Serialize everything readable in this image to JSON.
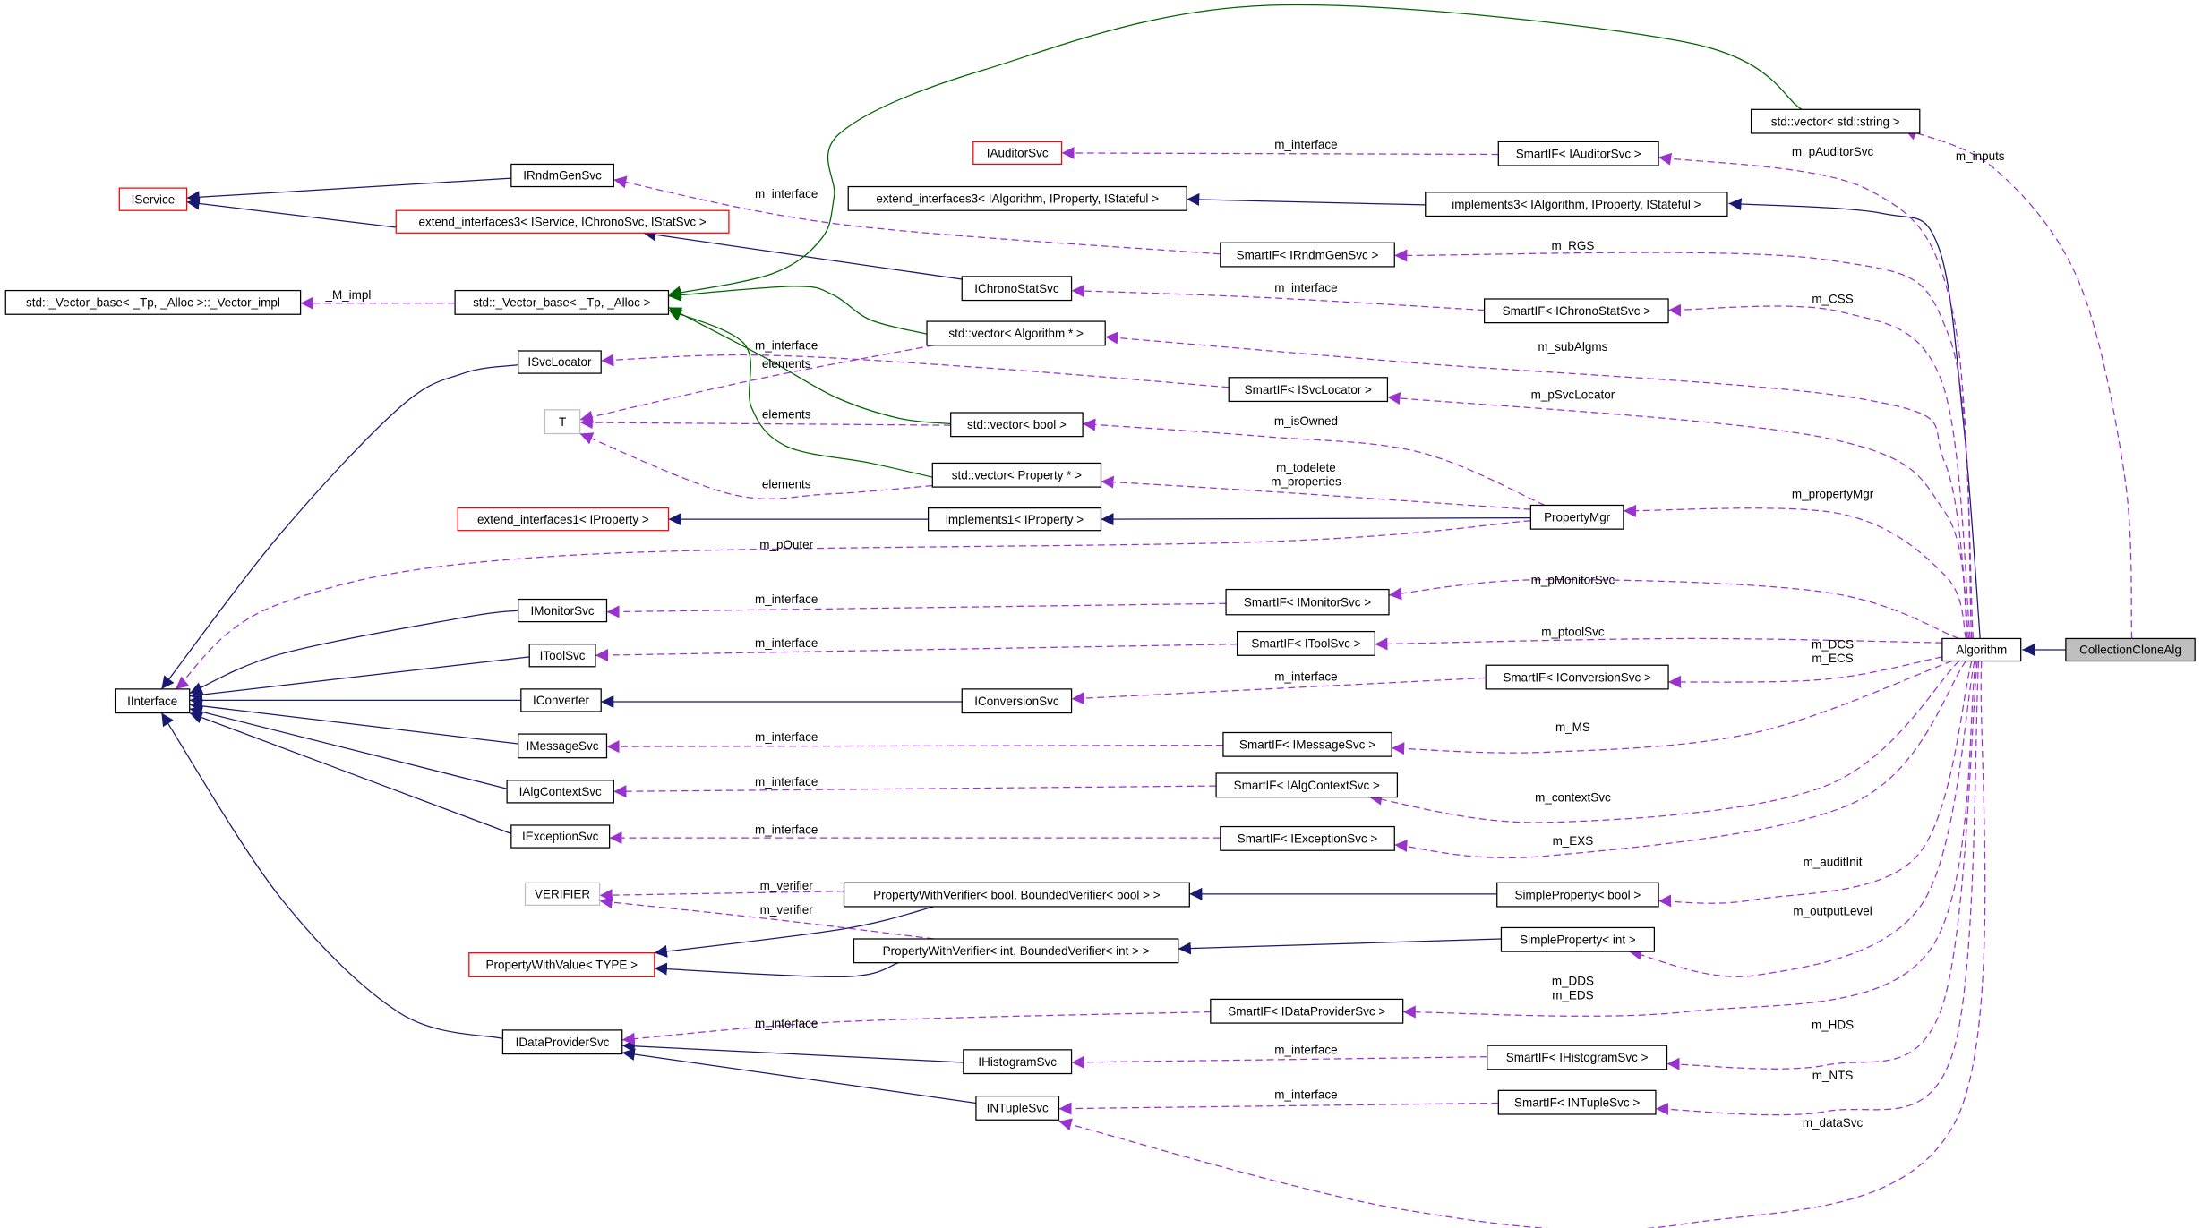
{
  "colors": {
    "inheritance": "#191970",
    "usage": "#9a32cd",
    "template": "#006400",
    "undocumented_border": "#ff0000",
    "external_border": "#bfbfbf",
    "highlight_fill": "#bfbfbf"
  },
  "nodes": [
    {
      "label": "CollectionCloneAlg",
      "style": "highlight"
    },
    {
      "label": "Algorithm",
      "style": "normal"
    },
    {
      "label": "std::vector< std::string >",
      "style": "normal"
    },
    {
      "label": "IAuditorSvc",
      "style": "red"
    },
    {
      "label": "SmartIF< IAuditorSvc >",
      "style": "normal"
    },
    {
      "label": "extend_interfaces3< IAlgorithm, IProperty, IStateful >",
      "style": "normal"
    },
    {
      "label": "implements3< IAlgorithm, IProperty, IStateful >",
      "style": "normal"
    },
    {
      "label": "IRndmGenSvc",
      "style": "normal"
    },
    {
      "label": "IService",
      "style": "red"
    },
    {
      "label": "extend_interfaces3< IService, IChronoSvc, IStatSvc >",
      "style": "red"
    },
    {
      "label": "SmartIF< IRndmGenSvc >",
      "style": "normal"
    },
    {
      "label": "IChronoStatSvc",
      "style": "normal"
    },
    {
      "label": "SmartIF< IChronoStatSvc >",
      "style": "normal"
    },
    {
      "label": "std::_Vector_base< _Tp, _Alloc >::_Vector_impl",
      "style": "normal"
    },
    {
      "label": "std::_Vector_base< _Tp, _Alloc >",
      "style": "normal"
    },
    {
      "label": "std::vector< Algorithm * >",
      "style": "normal"
    },
    {
      "label": "ISvcLocator",
      "style": "normal"
    },
    {
      "label": "SmartIF< ISvcLocator >",
      "style": "normal"
    },
    {
      "label": "T",
      "style": "gray"
    },
    {
      "label": "std::vector< bool >",
      "style": "normal"
    },
    {
      "label": "std::vector< Property * >",
      "style": "normal"
    },
    {
      "label": "extend_interfaces1< IProperty >",
      "style": "red"
    },
    {
      "label": "implements1< IProperty >",
      "style": "normal"
    },
    {
      "label": "PropertyMgr",
      "style": "normal"
    },
    {
      "label": "IMonitorSvc",
      "style": "normal"
    },
    {
      "label": "SmartIF< IMonitorSvc >",
      "style": "normal"
    },
    {
      "label": "IToolSvc",
      "style": "normal"
    },
    {
      "label": "SmartIF< IToolSvc >",
      "style": "normal"
    },
    {
      "label": "IInterface",
      "style": "normal"
    },
    {
      "label": "IConverter",
      "style": "normal"
    },
    {
      "label": "IConversionSvc",
      "style": "normal"
    },
    {
      "label": "SmartIF< IConversionSvc >",
      "style": "normal"
    },
    {
      "label": "IMessageSvc",
      "style": "normal"
    },
    {
      "label": "SmartIF< IMessageSvc >",
      "style": "normal"
    },
    {
      "label": "IAlgContextSvc",
      "style": "normal"
    },
    {
      "label": "SmartIF< IAlgContextSvc >",
      "style": "normal"
    },
    {
      "label": "IExceptionSvc",
      "style": "normal"
    },
    {
      "label": "SmartIF< IExceptionSvc >",
      "style": "normal"
    },
    {
      "label": "VERIFIER",
      "style": "gray"
    },
    {
      "label": "PropertyWithVerifier< bool, BoundedVerifier< bool > >",
      "style": "normal"
    },
    {
      "label": "SimpleProperty< bool >",
      "style": "normal"
    },
    {
      "label": "PropertyWithValue< TYPE >",
      "style": "red"
    },
    {
      "label": "PropertyWithVerifier< int, BoundedVerifier< int > >",
      "style": "normal"
    },
    {
      "label": "SimpleProperty< int >",
      "style": "normal"
    },
    {
      "label": "SmartIF< IDataProviderSvc >",
      "style": "normal"
    },
    {
      "label": "IDataProviderSvc",
      "style": "normal"
    },
    {
      "label": "IHistogramSvc",
      "style": "normal"
    },
    {
      "label": "SmartIF< IHistogramSvc >",
      "style": "normal"
    },
    {
      "label": "INTupleSvc",
      "style": "normal"
    },
    {
      "label": "SmartIF< INTupleSvc >",
      "style": "normal"
    }
  ],
  "edges": [
    {
      "from": 0,
      "to": 1,
      "type": "inheritance",
      "label": []
    },
    {
      "from": 1,
      "to": 6,
      "type": "inheritance",
      "label": []
    },
    {
      "from": 6,
      "to": 5,
      "type": "inheritance",
      "label": []
    },
    {
      "from": 23,
      "to": 22,
      "type": "inheritance",
      "label": []
    },
    {
      "from": 22,
      "to": 21,
      "type": "inheritance",
      "label": []
    },
    {
      "from": 7,
      "to": 8,
      "type": "inheritance",
      "label": []
    },
    {
      "from": 9,
      "to": 8,
      "type": "inheritance",
      "label": []
    },
    {
      "from": 11,
      "to": 9,
      "type": "inheritance",
      "label": []
    },
    {
      "from": 16,
      "to": 28,
      "type": "inheritance",
      "label": []
    },
    {
      "from": 24,
      "to": 28,
      "type": "inheritance",
      "label": []
    },
    {
      "from": 26,
      "to": 28,
      "type": "inheritance",
      "label": []
    },
    {
      "from": 29,
      "to": 28,
      "type": "inheritance",
      "label": []
    },
    {
      "from": 30,
      "to": 29,
      "type": "inheritance",
      "label": []
    },
    {
      "from": 32,
      "to": 28,
      "type": "inheritance",
      "label": []
    },
    {
      "from": 34,
      "to": 28,
      "type": "inheritance",
      "label": []
    },
    {
      "from": 36,
      "to": 28,
      "type": "inheritance",
      "label": []
    },
    {
      "from": 45,
      "to": 28,
      "type": "inheritance",
      "label": []
    },
    {
      "from": 46,
      "to": 45,
      "type": "inheritance",
      "label": []
    },
    {
      "from": 48,
      "to": 45,
      "type": "inheritance",
      "label": []
    },
    {
      "from": 40,
      "to": 39,
      "type": "inheritance",
      "label": []
    },
    {
      "from": 43,
      "to": 42,
      "type": "inheritance",
      "label": []
    },
    {
      "from": 39,
      "to": 41,
      "type": "inheritance",
      "label": []
    },
    {
      "from": 42,
      "to": 41,
      "type": "inheritance",
      "label": []
    },
    {
      "from": 2,
      "to": 14,
      "type": "template",
      "label": []
    },
    {
      "from": 15,
      "to": 14,
      "type": "template",
      "label": []
    },
    {
      "from": 19,
      "to": 14,
      "type": "template",
      "label": []
    },
    {
      "from": 20,
      "to": 14,
      "type": "template",
      "label": []
    },
    {
      "from": 14,
      "to": 13,
      "type": "usage",
      "label": [
        "_M_impl"
      ]
    },
    {
      "from": 15,
      "to": 18,
      "type": "usage",
      "label": [
        "elements"
      ]
    },
    {
      "from": 19,
      "to": 18,
      "type": "usage",
      "label": [
        "elements"
      ]
    },
    {
      "from": 20,
      "to": 18,
      "type": "usage",
      "label": [
        "elements"
      ]
    },
    {
      "from": 4,
      "to": 3,
      "type": "usage",
      "label": [
        "m_interface"
      ]
    },
    {
      "from": 10,
      "to": 7,
      "type": "usage",
      "label": [
        "m_interface"
      ]
    },
    {
      "from": 12,
      "to": 11,
      "type": "usage",
      "label": [
        "m_interface"
      ]
    },
    {
      "from": 17,
      "to": 16,
      "type": "usage",
      "label": [
        "m_interface"
      ]
    },
    {
      "from": 23,
      "to": 19,
      "type": "usage",
      "label": [
        "m_isOwned"
      ]
    },
    {
      "from": 23,
      "to": 20,
      "type": "usage",
      "label": [
        "m_todelete",
        "m_properties"
      ]
    },
    {
      "from": 23,
      "to": 28,
      "type": "usage",
      "label": [
        "m_pOuter"
      ]
    },
    {
      "from": 25,
      "to": 24,
      "type": "usage",
      "label": [
        "m_interface"
      ]
    },
    {
      "from": 27,
      "to": 26,
      "type": "usage",
      "label": [
        "m_interface"
      ]
    },
    {
      "from": 31,
      "to": 30,
      "type": "usage",
      "label": [
        "m_interface"
      ]
    },
    {
      "from": 33,
      "to": 32,
      "type": "usage",
      "label": [
        "m_interface"
      ]
    },
    {
      "from": 35,
      "to": 34,
      "type": "usage",
      "label": [
        "m_interface"
      ]
    },
    {
      "from": 37,
      "to": 36,
      "type": "usage",
      "label": [
        "m_interface"
      ]
    },
    {
      "from": 39,
      "to": 38,
      "type": "usage",
      "label": [
        "m_verifier"
      ]
    },
    {
      "from": 42,
      "to": 38,
      "type": "usage",
      "label": [
        "m_verifier"
      ]
    },
    {
      "from": 44,
      "to": 45,
      "type": "usage",
      "label": [
        "m_interface"
      ]
    },
    {
      "from": 47,
      "to": 46,
      "type": "usage",
      "label": [
        "m_interface"
      ]
    },
    {
      "from": 49,
      "to": 48,
      "type": "usage",
      "label": [
        "m_interface"
      ]
    },
    {
      "from": 0,
      "to": 2,
      "type": "usage",
      "label": [
        "m_inputs"
      ]
    },
    {
      "from": 1,
      "to": 4,
      "type": "usage",
      "label": [
        "m_pAuditorSvc"
      ]
    },
    {
      "from": 1,
      "to": 10,
      "type": "usage",
      "label": [
        "m_RGS"
      ]
    },
    {
      "from": 1,
      "to": 12,
      "type": "usage",
      "label": [
        "m_CSS"
      ]
    },
    {
      "from": 1,
      "to": 15,
      "type": "usage",
      "label": [
        "m_subAlgms"
      ]
    },
    {
      "from": 1,
      "to": 17,
      "type": "usage",
      "label": [
        "m_pSvcLocator"
      ]
    },
    {
      "from": 1,
      "to": 23,
      "type": "usage",
      "label": [
        "m_propertyMgr"
      ]
    },
    {
      "from": 1,
      "to": 25,
      "type": "usage",
      "label": [
        "m_pMonitorSvc"
      ]
    },
    {
      "from": 1,
      "to": 27,
      "type": "usage",
      "label": [
        "m_ptoolSvc"
      ]
    },
    {
      "from": 1,
      "to": 31,
      "type": "usage",
      "label": [
        "m_DCS",
        "m_ECS"
      ]
    },
    {
      "from": 1,
      "to": 33,
      "type": "usage",
      "label": [
        "m_MS"
      ]
    },
    {
      "from": 1,
      "to": 35,
      "type": "usage",
      "label": [
        "m_contextSvc"
      ]
    },
    {
      "from": 1,
      "to": 37,
      "type": "usage",
      "label": [
        "m_EXS"
      ]
    },
    {
      "from": 1,
      "to": 40,
      "type": "usage",
      "label": [
        "m_auditInit"
      ]
    },
    {
      "from": 1,
      "to": 43,
      "type": "usage",
      "label": [
        "m_outputLevel"
      ]
    },
    {
      "from": 1,
      "to": 44,
      "type": "usage",
      "label": [
        "m_DDS",
        "m_EDS"
      ]
    },
    {
      "from": 1,
      "to": 47,
      "type": "usage",
      "label": [
        "m_HDS"
      ]
    },
    {
      "from": 1,
      "to": 49,
      "type": "usage",
      "label": [
        "m_NTS"
      ]
    },
    {
      "from": 1,
      "to": 48,
      "type": "usage",
      "label": [
        "m_dataSvc"
      ]
    }
  ]
}
